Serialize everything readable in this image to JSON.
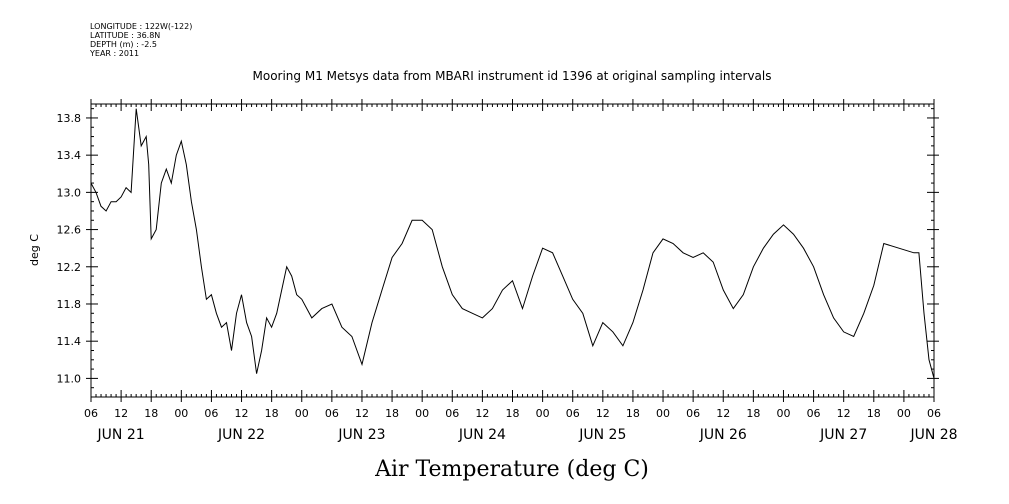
{
  "meta": {
    "longitude": "LONGITUDE : 122W(-122)",
    "latitude": "LATITUDE : 36.8N",
    "depth": "DEPTH (m) : -2.5",
    "year": "YEAR : 2011"
  },
  "chart_data": {
    "type": "line",
    "title": "Mooring M1 Metsys data from MBARI instrument id 1396 at original sampling intervals",
    "caption": "Air Temperature (deg C)",
    "ylabel": "deg C",
    "xlabel": "",
    "ylim": [
      10.8,
      13.95
    ],
    "xlim": [
      "2011-06-21 06:00",
      "2011-06-28 06:00"
    ],
    "yticks": [
      "11.0",
      "11.4",
      "11.8",
      "12.2",
      "12.6",
      "13.0",
      "13.4",
      "13.8"
    ],
    "hour_labels": [
      "06",
      "12",
      "18",
      "00",
      "06",
      "12",
      "18",
      "00",
      "06",
      "12",
      "18",
      "00",
      "06",
      "12",
      "18",
      "00",
      "06",
      "12",
      "18",
      "00",
      "06",
      "12",
      "18",
      "00",
      "06",
      "12",
      "18",
      "00",
      "06"
    ],
    "date_labels": [
      "JUN 21",
      "JUN 22",
      "JUN 23",
      "JUN 24",
      "JUN 25",
      "JUN 26",
      "JUN 27",
      "JUN 28"
    ],
    "grid": false,
    "series": [
      {
        "x": [
          "2011-06-21 06:00",
          "2011-06-21 07:00",
          "2011-06-21 08:00",
          "2011-06-21 09:00",
          "2011-06-21 10:00",
          "2011-06-21 11:00",
          "2011-06-21 12:00",
          "2011-06-21 13:00",
          "2011-06-21 14:00",
          "2011-06-21 15:00",
          "2011-06-21 16:00",
          "2011-06-21 17:00",
          "2011-06-21 17:30",
          "2011-06-21 18:00",
          "2011-06-21 19:00",
          "2011-06-21 20:00",
          "2011-06-21 21:00",
          "2011-06-21 22:00",
          "2011-06-21 23:00",
          "2011-06-22 00:00",
          "2011-06-22 01:00",
          "2011-06-22 02:00",
          "2011-06-22 03:00",
          "2011-06-22 04:00",
          "2011-06-22 05:00",
          "2011-06-22 06:00",
          "2011-06-22 07:00",
          "2011-06-22 08:00",
          "2011-06-22 09:00",
          "2011-06-22 10:00",
          "2011-06-22 11:00",
          "2011-06-22 12:00",
          "2011-06-22 13:00",
          "2011-06-22 14:00",
          "2011-06-22 15:00",
          "2011-06-22 16:00",
          "2011-06-22 17:00",
          "2011-06-22 18:00",
          "2011-06-22 19:00",
          "2011-06-22 20:00",
          "2011-06-22 21:00",
          "2011-06-22 22:00",
          "2011-06-22 23:00",
          "2011-06-23 00:00",
          "2011-06-23 02:00",
          "2011-06-23 04:00",
          "2011-06-23 06:00",
          "2011-06-23 08:00",
          "2011-06-23 10:00",
          "2011-06-23 12:00",
          "2011-06-23 14:00",
          "2011-06-23 16:00",
          "2011-06-23 18:00",
          "2011-06-23 20:00",
          "2011-06-23 22:00",
          "2011-06-24 00:00",
          "2011-06-24 02:00",
          "2011-06-24 04:00",
          "2011-06-24 06:00",
          "2011-06-24 08:00",
          "2011-06-24 10:00",
          "2011-06-24 12:00",
          "2011-06-24 14:00",
          "2011-06-24 16:00",
          "2011-06-24 18:00",
          "2011-06-24 20:00",
          "2011-06-24 22:00",
          "2011-06-25 00:00",
          "2011-06-25 02:00",
          "2011-06-25 04:00",
          "2011-06-25 06:00",
          "2011-06-25 08:00",
          "2011-06-25 10:00",
          "2011-06-25 12:00",
          "2011-06-25 14:00",
          "2011-06-25 16:00",
          "2011-06-25 18:00",
          "2011-06-25 20:00",
          "2011-06-25 22:00",
          "2011-06-26 00:00",
          "2011-06-26 02:00",
          "2011-06-26 04:00",
          "2011-06-26 06:00",
          "2011-06-26 08:00",
          "2011-06-26 10:00",
          "2011-06-26 12:00",
          "2011-06-26 14:00",
          "2011-06-26 16:00",
          "2011-06-26 18:00",
          "2011-06-26 20:00",
          "2011-06-26 22:00",
          "2011-06-27 00:00",
          "2011-06-27 02:00",
          "2011-06-27 04:00",
          "2011-06-27 06:00",
          "2011-06-27 08:00",
          "2011-06-27 10:00",
          "2011-06-27 12:00",
          "2011-06-27 14:00",
          "2011-06-27 16:00",
          "2011-06-27 18:00",
          "2011-06-27 20:00",
          "2011-06-28 02:00",
          "2011-06-28 03:00",
          "2011-06-28 04:00",
          "2011-06-28 05:00",
          "2011-06-28 06:00"
        ],
        "values": [
          13.1,
          13.0,
          12.85,
          12.8,
          12.9,
          12.9,
          12.95,
          13.05,
          13.0,
          13.9,
          13.5,
          13.6,
          13.3,
          12.5,
          12.6,
          13.1,
          13.25,
          13.1,
          13.4,
          13.55,
          13.3,
          12.9,
          12.6,
          12.2,
          11.85,
          11.9,
          11.7,
          11.55,
          11.6,
          11.3,
          11.7,
          11.9,
          11.6,
          11.45,
          11.05,
          11.3,
          11.65,
          11.55,
          11.7,
          11.95,
          12.2,
          12.1,
          11.9,
          11.85,
          11.65,
          11.75,
          11.8,
          11.55,
          11.45,
          11.15,
          11.6,
          11.95,
          12.3,
          12.45,
          12.7,
          12.7,
          12.6,
          12.2,
          11.9,
          11.75,
          11.7,
          11.65,
          11.75,
          11.95,
          12.05,
          11.75,
          12.1,
          12.4,
          12.35,
          12.1,
          11.85,
          11.7,
          11.35,
          11.6,
          11.5,
          11.35,
          11.6,
          11.95,
          12.35,
          12.5,
          12.45,
          12.35,
          12.3,
          12.35,
          12.25,
          11.95,
          11.75,
          11.9,
          12.2,
          12.4,
          12.55,
          12.65,
          12.55,
          12.4,
          12.2,
          11.9,
          11.65,
          11.5,
          11.45,
          11.7,
          12.0,
          12.45,
          12.35,
          12.35,
          11.7,
          11.2,
          11.0
        ]
      }
    ]
  }
}
